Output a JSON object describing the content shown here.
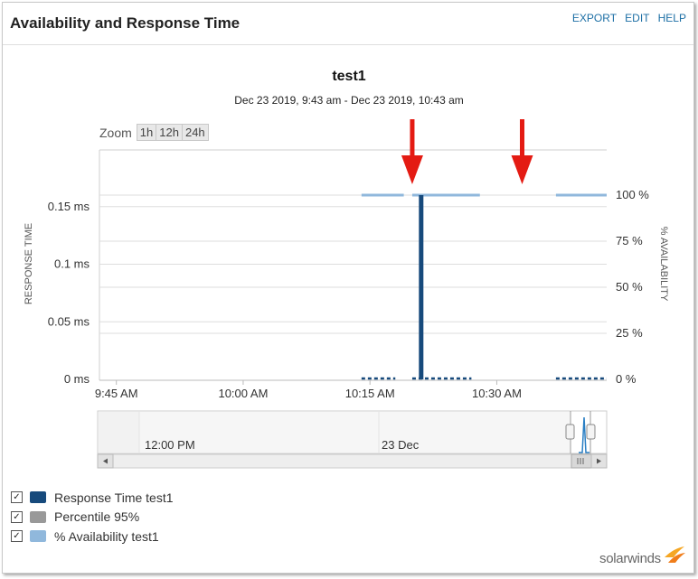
{
  "header": {
    "title": "Availability and Response Time",
    "links": [
      "EXPORT",
      "EDIT",
      "HELP"
    ]
  },
  "zoom": {
    "label": "Zoom",
    "buttons": [
      "1h",
      "12h",
      "24h"
    ]
  },
  "brand": "solarwinds",
  "colors": {
    "response_time": "#174a7c",
    "percentile": "#999999",
    "availability": "#90b8dc",
    "arrow": "#e41b13"
  },
  "chart_data": {
    "type": "line",
    "title": "test1",
    "subtitle": "Dec 23 2019, 9:43 am - Dec 23 2019, 10:43 am",
    "ylabel_left": "RESPONSE TIME",
    "ylabel_right": "% AVAILABILITY",
    "x_range": [
      "9:43 AM",
      "10:43 AM"
    ],
    "x_ticks": [
      "9:45 AM",
      "10:00 AM",
      "10:15 AM",
      "10:30 AM"
    ],
    "y_left_ticks": [
      "0 ms",
      "0.05 ms",
      "0.1 ms",
      "0.15 ms"
    ],
    "y_left_range": [
      0,
      0.2
    ],
    "y_right_ticks": [
      "0 %",
      "25 %",
      "50 %",
      "75 %",
      "100 %"
    ],
    "y_right_range": [
      0,
      100
    ],
    "grid": true,
    "legend_position": "bottom-left",
    "series": [
      {
        "name": "Response Time test1",
        "axis": "left",
        "style": "dashed-with-spike",
        "segments": [
          {
            "from": "10:14 AM",
            "to": "10:18 AM",
            "value": 0
          },
          {
            "from": "10:20 AM",
            "to": "10:27 AM",
            "value": 0
          },
          {
            "from": "10:37 AM",
            "to": "10:43 AM",
            "value": 0
          }
        ],
        "spike": {
          "time": "10:21 AM",
          "value": 0.16
        }
      },
      {
        "name": "Percentile 95%",
        "axis": "left",
        "segments": []
      },
      {
        "name": "% Availability test1",
        "axis": "right",
        "segments": [
          {
            "from": "10:14 AM",
            "to": "10:19 AM",
            "value": 100
          },
          {
            "from": "10:20 AM",
            "to": "10:28 AM",
            "value": 100
          },
          {
            "from": "10:37 AM",
            "to": "10:43 AM",
            "value": 100
          }
        ]
      }
    ],
    "annotations": [
      {
        "type": "arrow",
        "time": "10:20 AM",
        "direction": "down"
      },
      {
        "type": "arrow",
        "time": "10:33 AM",
        "direction": "down"
      }
    ],
    "navigator": {
      "labels": [
        "12:00 PM",
        "23 Dec"
      ]
    }
  }
}
